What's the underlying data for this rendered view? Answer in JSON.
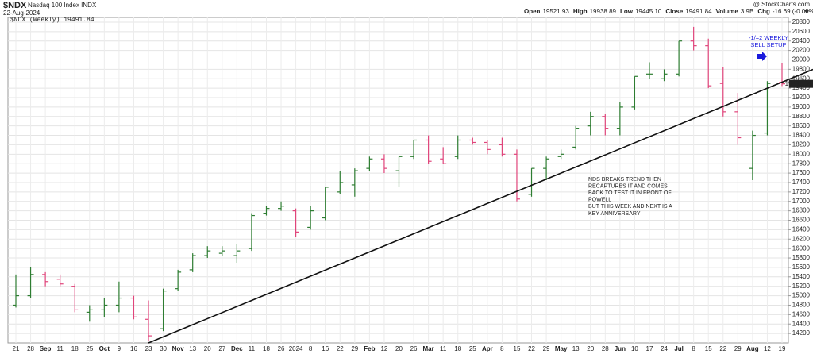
{
  "chart_data": {
    "type": "ohlc",
    "header": {
      "symbol": "$NDX",
      "name": "Nasdaq 100 Index INDX",
      "date": "22-Aug-2024",
      "source": "@ StockCharts.com",
      "quote": [
        {
          "label": "Open",
          "value": "19521.93"
        },
        {
          "label": "High",
          "value": "19938.89"
        },
        {
          "label": "Low",
          "value": "19445.10"
        },
        {
          "label": "Close",
          "value": "19491.84"
        },
        {
          "label": "Volume",
          "value": "3.9B"
        },
        {
          "label": "Chg",
          "value": "-16.69 (-0.09%)"
        }
      ]
    },
    "legend": "$NDX (Weekly) 19491.84",
    "annotations": {
      "setup": [
        "-1/=2 WEEKLY",
        "SELL SETUP"
      ],
      "note": [
        "NDS BREAKS TREND THEN",
        "RECAPTURES IT AND COMES",
        "BACK TO TEST IT IN FRONT OF",
        "POWELL",
        "BUT THIS WEEK AND NEXT IS A",
        "KEY ANNIVERSARY"
      ]
    },
    "categories": [
      "21",
      "28",
      "Sep",
      "11",
      "18",
      "25",
      "Oct",
      "9",
      "16",
      "23",
      "30",
      "Nov",
      "13",
      "20",
      "27",
      "Dec",
      "11",
      "18",
      "26",
      "2024",
      "8",
      "16",
      "22",
      "29",
      "Feb",
      "12",
      "20",
      "26",
      "Mar",
      "11",
      "18",
      "25",
      "Apr",
      "8",
      "15",
      "22",
      "29",
      "May",
      "13",
      "20",
      "28",
      "Jun",
      "10",
      "17",
      "24",
      "Jul",
      "8",
      "15",
      "22",
      "29",
      "Aug",
      "12",
      "19"
    ],
    "open": [
      14800,
      15000,
      15450,
      15350,
      15200,
      14650,
      14700,
      14800,
      14950,
      14500,
      14300,
      15150,
      15550,
      15850,
      15900,
      15850,
      16000,
      16750,
      16850,
      16800,
      16450,
      16650,
      17200,
      17350,
      17700,
      17900,
      17650,
      17950,
      18300,
      17900,
      17950,
      18300,
      18250,
      18200,
      18000,
      17150,
      17700,
      17950,
      18150,
      18600,
      18800,
      18550,
      19000,
      19700,
      19600,
      19700,
      20400,
      20300,
      19500,
      18900,
      17700,
      18450,
      19521.93
    ],
    "high": [
      15450,
      15600,
      15500,
      15450,
      15250,
      14800,
      14950,
      15300,
      15000,
      14900,
      15150,
      15550,
      15900,
      16050,
      16050,
      16100,
      16750,
      16900,
      17000,
      16850,
      16900,
      17300,
      17650,
      17700,
      17950,
      18000,
      17950,
      18300,
      18400,
      18150,
      18400,
      18350,
      18300,
      18350,
      18100,
      17700,
      17950,
      18100,
      18600,
      18900,
      18850,
      19100,
      19650,
      19950,
      19800,
      20400,
      20700,
      20450,
      19850,
      19300,
      18500,
      19550,
      19938.89
    ],
    "low": [
      14750,
      14950,
      15200,
      15200,
      14650,
      14450,
      14550,
      14650,
      14500,
      14050,
      14250,
      15100,
      15500,
      15800,
      15850,
      15700,
      15950,
      16700,
      16800,
      16250,
      16400,
      16600,
      17150,
      17100,
      17650,
      17600,
      17300,
      17900,
      17800,
      17800,
      17900,
      18200,
      18000,
      17950,
      17000,
      17100,
      17450,
      17900,
      18100,
      18400,
      18400,
      18400,
      18950,
      19600,
      19550,
      19650,
      20200,
      19400,
      18800,
      18200,
      17450,
      18400,
      19445.1
    ],
    "close": [
      15000,
      15450,
      15300,
      15250,
      14700,
      14700,
      14800,
      14950,
      14550,
      14150,
      15100,
      15500,
      15850,
      15950,
      15950,
      15950,
      16700,
      16850,
      16900,
      16350,
      16800,
      17300,
      17400,
      17650,
      17900,
      17700,
      17950,
      18300,
      17850,
      17800,
      18300,
      18250,
      18100,
      18000,
      17050,
      17700,
      17900,
      18000,
      18550,
      18800,
      18550,
      19000,
      19650,
      19700,
      19700,
      20400,
      20300,
      19450,
      18900,
      18350,
      18400,
      19500,
      19491.84
    ],
    "up_color": "#2e7d32",
    "down_color": "#e0457b",
    "trendline": {
      "from": [
        9,
        14000
      ],
      "to": [
        52,
        19528
      ],
      "color": "#111111"
    },
    "ylim": [
      14000,
      20900
    ],
    "yticks": [
      14200,
      14400,
      14600,
      14800,
      15000,
      15200,
      15400,
      15600,
      15800,
      16000,
      16200,
      16400,
      16600,
      16800,
      17000,
      17200,
      17400,
      17600,
      17800,
      18000,
      18200,
      18400,
      18600,
      18800,
      19000,
      19200,
      19400,
      19600,
      19800,
      20000,
      20200,
      20400,
      20600,
      20800
    ],
    "grid": true
  }
}
